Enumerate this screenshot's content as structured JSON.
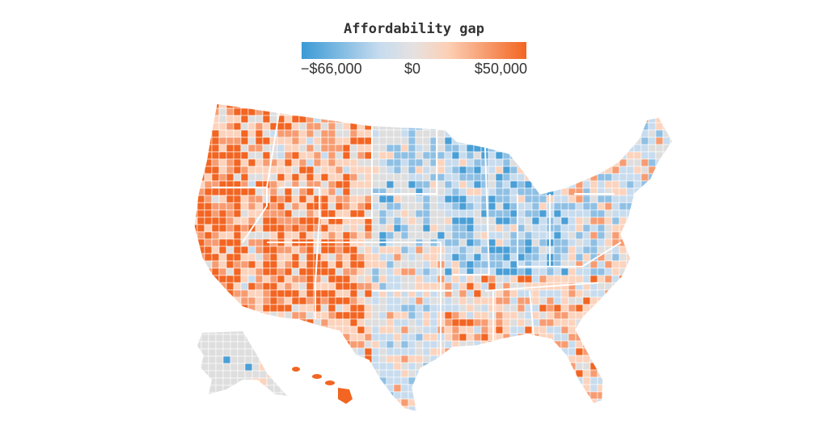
{
  "legend": {
    "title": "Affordability gap",
    "min_label": "−$66,000",
    "mid_label": "$0",
    "max_label": "$50,000",
    "min_value": -66000,
    "mid_value": 0,
    "max_value": 50000,
    "colors": [
      "#3a9ad6",
      "#c7dcef",
      "#e6e1e0",
      "#fcd0b6",
      "#f26522"
    ]
  },
  "map": {
    "type": "choropleth",
    "unit": "county",
    "no_data_color": "#dddddd",
    "regions": [
      "contiguous-us",
      "alaska",
      "hawaii"
    ]
  }
}
